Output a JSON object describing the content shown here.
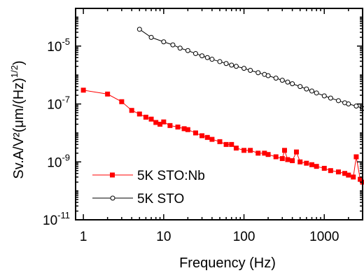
{
  "chart_data": {
    "type": "scatter",
    "title": "",
    "xlabel": "Frequency (Hz)",
    "ylabel": "Sv.A/V²(μm/(Hz)",
    "ylabel_super": "1/2",
    "ylabel_close": ")",
    "xscale": "log",
    "yscale": "log",
    "xlim": [
      0.8,
      3000
    ],
    "ylim": [
      1e-11,
      0.0002
    ],
    "grid": false,
    "legend_position": "bottom-left",
    "x_ticks": [
      {
        "value": 1,
        "label": "1"
      },
      {
        "value": 10,
        "label": "10"
      },
      {
        "value": 100,
        "label": "100"
      },
      {
        "value": 1000,
        "label": "1000"
      }
    ],
    "y_ticks": [
      {
        "value": 1e-05,
        "base": "10",
        "exp": "-5"
      },
      {
        "value": 1e-07,
        "base": "10",
        "exp": "-7"
      },
      {
        "value": 1e-09,
        "base": "10",
        "exp": "-9"
      },
      {
        "value": 1e-11,
        "base": "10",
        "exp": "-11"
      }
    ],
    "series": [
      {
        "name": "5K STO:Nb",
        "color": "#ff0000",
        "marker": "square-filled",
        "x": [
          1,
          2,
          3,
          4,
          5,
          6,
          7,
          8,
          9,
          10,
          12,
          15,
          18,
          20,
          25,
          30,
          35,
          40,
          50,
          60,
          70,
          80,
          100,
          120,
          150,
          180,
          200,
          250,
          300,
          320,
          350,
          400,
          450,
          500,
          600,
          700,
          800,
          1000,
          1200,
          1500,
          1800,
          2000,
          2300,
          2500,
          2800,
          3000
        ],
        "y": [
          3e-07,
          2.2e-07,
          1.2e-07,
          6e-08,
          4.5e-08,
          3.5e-08,
          3e-08,
          2.3e-08,
          2e-08,
          2.4e-08,
          1.8e-08,
          1.6e-08,
          1.4e-08,
          1.3e-08,
          1e-08,
          8e-09,
          7e-09,
          6e-09,
          5e-09,
          4e-09,
          4e-09,
          3e-09,
          2.5e-09,
          2.5e-09,
          2e-09,
          2e-09,
          1.8e-09,
          1.5e-09,
          1.3e-09,
          2.5e-09,
          1.2e-09,
          1.1e-09,
          2.2e-09,
          1e-09,
          9e-10,
          8e-10,
          7e-10,
          6e-10,
          5e-10,
          4.5e-10,
          4e-10,
          3.5e-10,
          3e-10,
          1.5e-09,
          2.5e-10,
          2e-10
        ]
      },
      {
        "name": "5K STO",
        "color": "#000000",
        "marker": "circle-open",
        "x": [
          5,
          7,
          10,
          13,
          16,
          20,
          25,
          30,
          35,
          40,
          50,
          60,
          70,
          80,
          100,
          120,
          150,
          180,
          200,
          250,
          300,
          350,
          400,
          500,
          600,
          700,
          800,
          1000,
          1200,
          1500,
          1800,
          2000,
          2500,
          3000
        ],
        "y": [
          3.8e-05,
          2e-05,
          1.4e-05,
          1.1e-05,
          8.5e-06,
          7e-06,
          5.5e-06,
          4.6e-06,
          4e-06,
          3.5e-06,
          2.9e-06,
          2.5e-06,
          2.2e-06,
          2e-06,
          1.7e-06,
          1.45e-06,
          1.2e-06,
          1.05e-06,
          9.5e-07,
          7.8e-07,
          6.6e-07,
          5.7e-07,
          5e-07,
          4e-07,
          3.3e-07,
          2.8e-07,
          2.4e-07,
          1.9e-07,
          1.6e-07,
          1.3e-07,
          1.1e-07,
          1e-07,
          8.5e-08,
          7e-08
        ]
      }
    ]
  }
}
